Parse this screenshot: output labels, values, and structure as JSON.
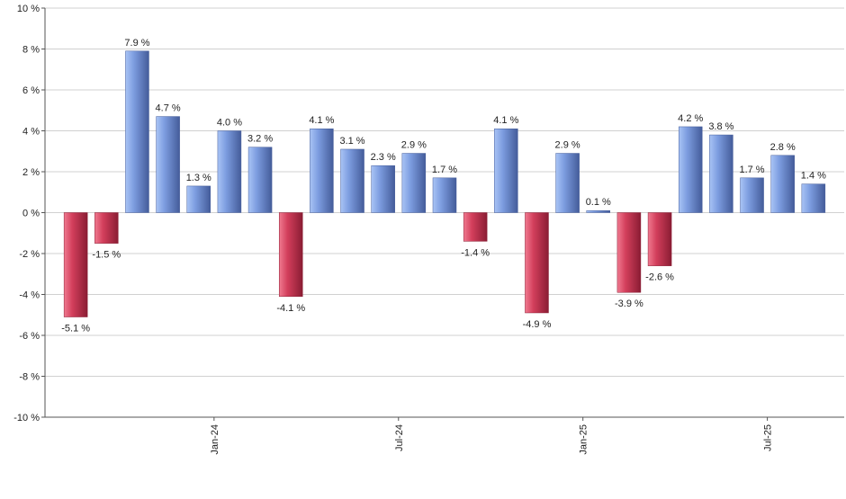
{
  "chart_data": {
    "type": "bar",
    "title": "",
    "xlabel": "",
    "ylabel": "",
    "ylim": [
      -10,
      10
    ],
    "y_ticks": [
      -10,
      -8,
      -6,
      -4,
      -2,
      0,
      2,
      4,
      6,
      8,
      10
    ],
    "y_tick_suffix": " %",
    "grid": true,
    "x_tick_labels": [
      {
        "label": "Jan-24",
        "index": 4.5
      },
      {
        "label": "Jul-24",
        "index": 10.5
      },
      {
        "label": "Jan-25",
        "index": 16.5
      },
      {
        "label": "Jul-25",
        "index": 22.5
      }
    ],
    "values": [
      -5.1,
      -1.5,
      7.9,
      4.7,
      1.3,
      4.0,
      3.2,
      -4.1,
      4.1,
      3.1,
      2.3,
      2.9,
      1.7,
      -1.4,
      4.1,
      -4.9,
      2.9,
      0.1,
      -3.9,
      -2.6,
      4.2,
      3.8,
      1.7,
      2.8,
      1.4
    ],
    "data_labels": [
      "-5.1 %",
      "-1.5 %",
      "7.9 %",
      "4.7 %",
      "1.3 %",
      "4.0 %",
      "3.2 %",
      "-4.1 %",
      "4.1 %",
      "3.1 %",
      "2.3 %",
      "2.9 %",
      "1.7 %",
      "-1.4 %",
      "4.1 %",
      "-4.9 %",
      "2.9 %",
      "0.1 %",
      "-3.9 %",
      "-2.6 %",
      "4.2 %",
      "3.8 %",
      "1.7 %",
      "2.8 %",
      "1.4 %"
    ],
    "colors": {
      "positive_light": "#a9c4f5",
      "positive_mid": "#7d9de0",
      "positive_dark": "#445c9a",
      "negative_light": "#f07a90",
      "negative_mid": "#d33f5c",
      "negative_dark": "#8a1c33",
      "grid": "#d0d0d0",
      "axis": "#555555"
    }
  }
}
